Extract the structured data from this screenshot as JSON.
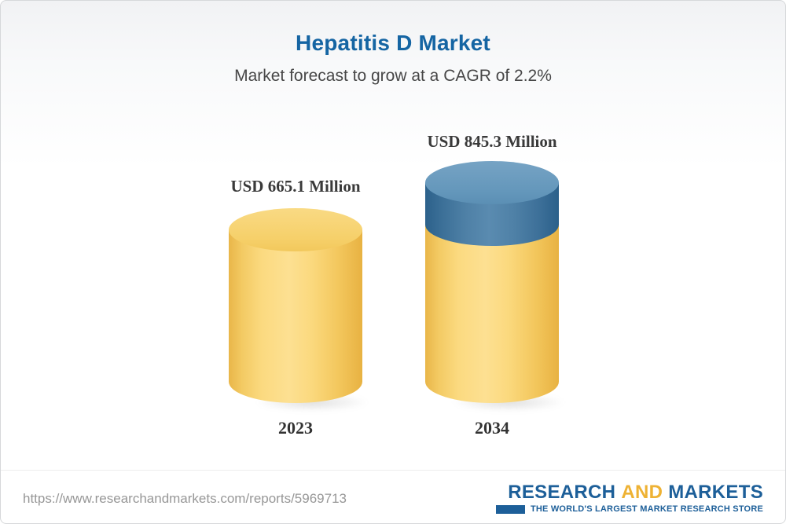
{
  "header": {
    "title": "Hepatitis D Market",
    "subtitle": "Market forecast to grow at a CAGR of 2.2%"
  },
  "chart_data": {
    "type": "bar",
    "bar_style": "3d-cylinder",
    "title": "Hepatitis D Market",
    "subtitle": "Market forecast to grow at a CAGR of 2.2%",
    "unit": "USD Million",
    "categories": [
      "2023",
      "2034"
    ],
    "values": [
      665.1,
      845.3
    ],
    "value_labels": [
      "USD 665.1 Million",
      "USD 845.3 Million"
    ],
    "cagr_percent": 2.2,
    "ylim": [
      0,
      900
    ],
    "grid": false,
    "legend": "none",
    "colors": {
      "base_segment": "#f6cd5e",
      "growth_segment": "#41749c",
      "title_text": "#1565a3",
      "label_text": "#3a3a3a"
    }
  },
  "footer": {
    "url": "https://www.researchandmarkets.com/reports/5969713",
    "logo": {
      "word1": "RESEARCH",
      "word2": "AND",
      "word3": "MARKETS",
      "tagline": "THE WORLD'S LARGEST MARKET RESEARCH STORE",
      "brand_blue": "#1d5f99",
      "brand_yellow": "#eeb234"
    }
  }
}
